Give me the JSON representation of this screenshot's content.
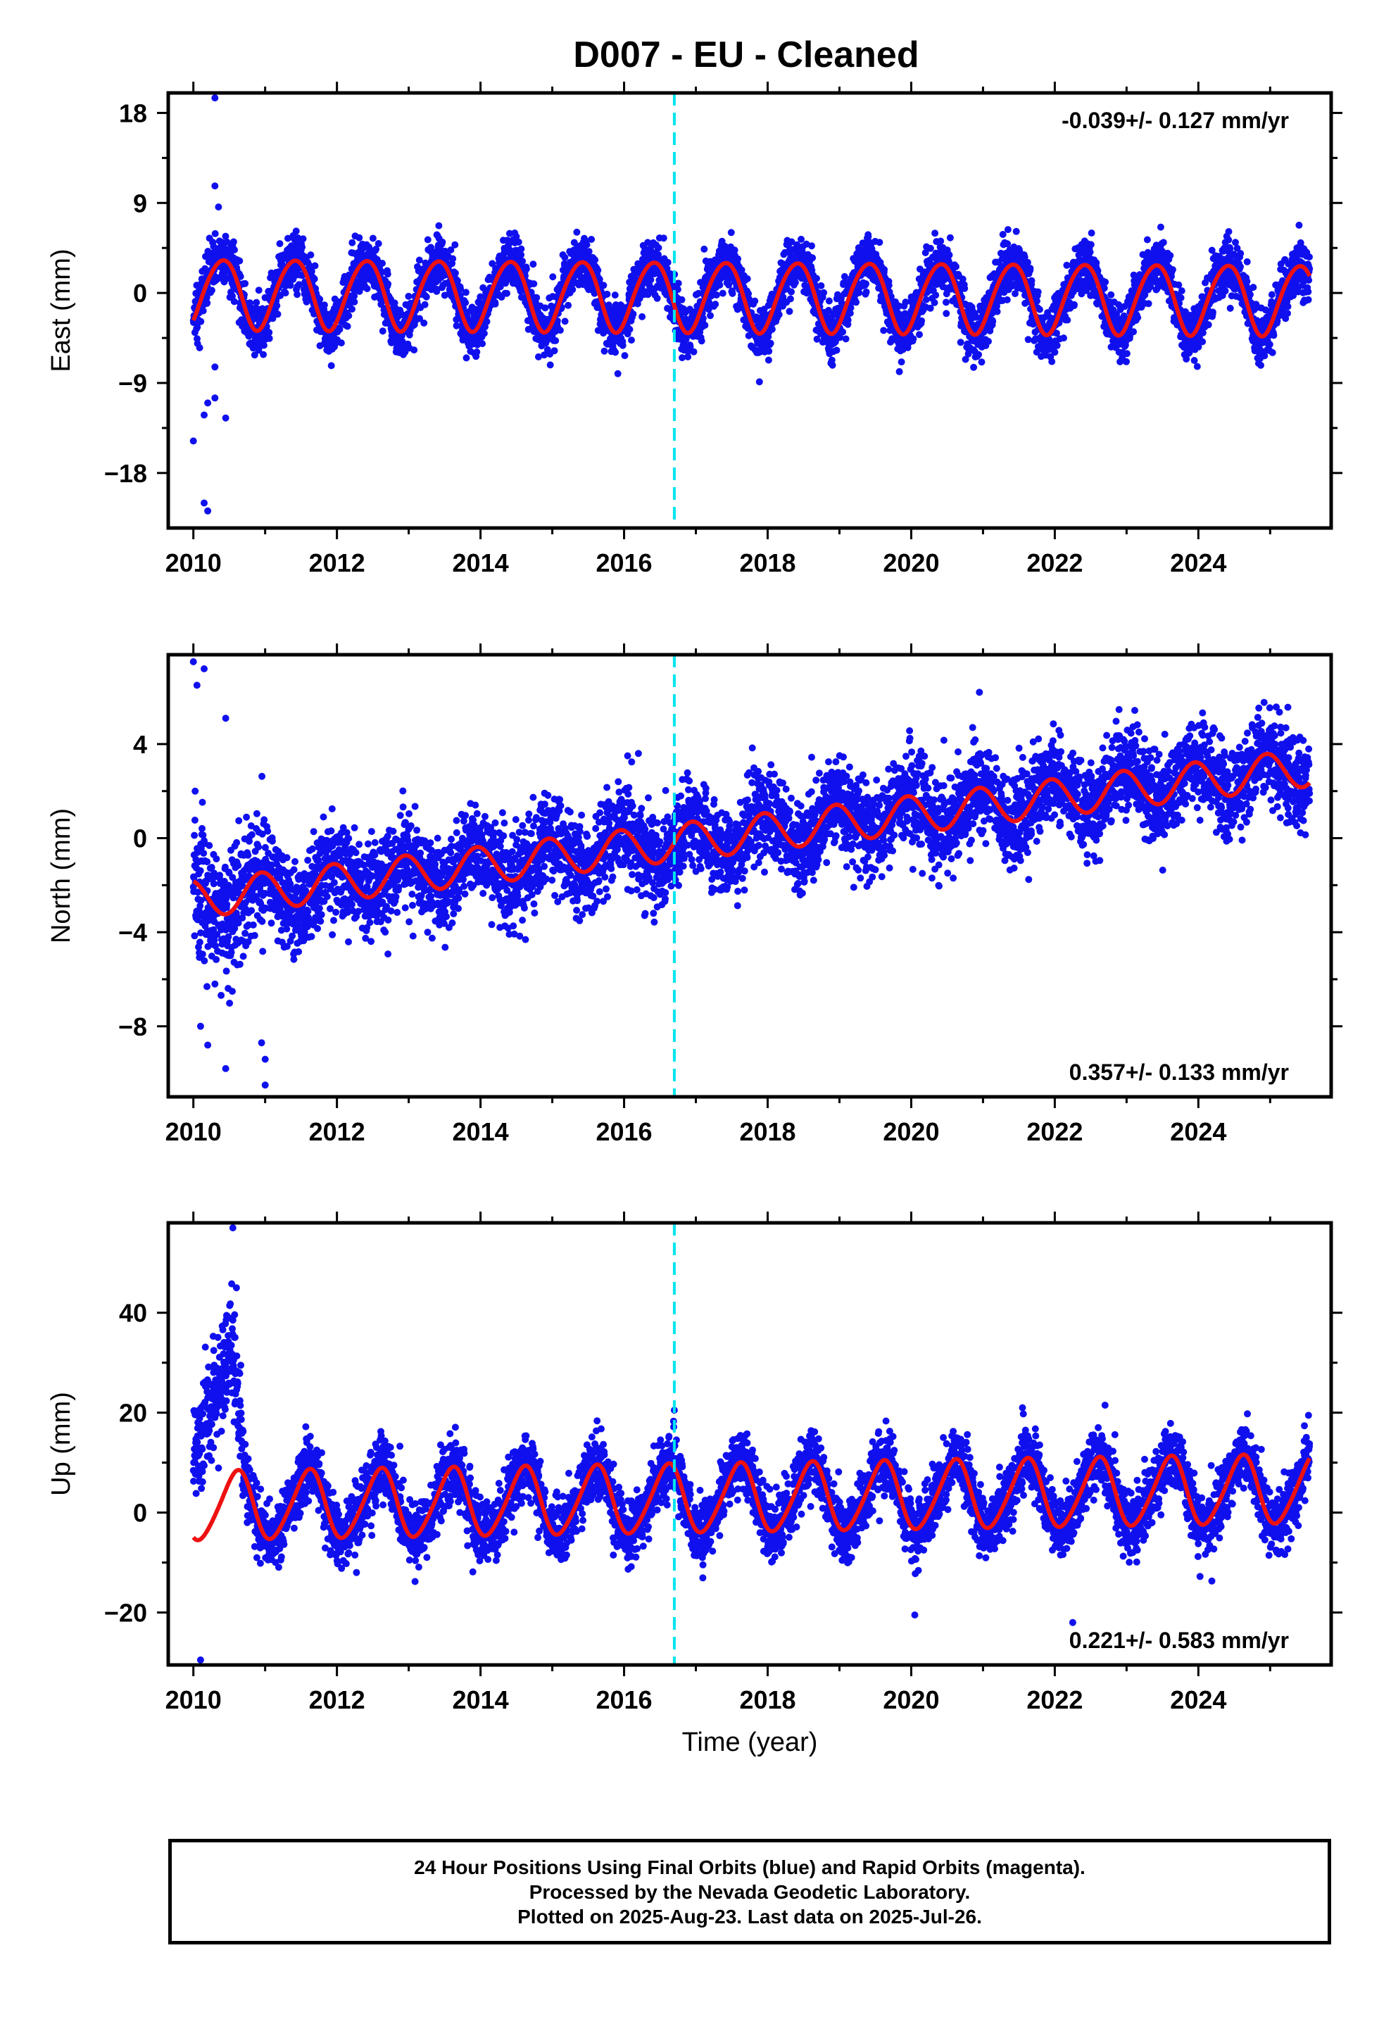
{
  "title": "D007  - EU - Cleaned",
  "x_axis_label": "Time (year)",
  "footer": {
    "line1": "24 Hour Positions Using Final Orbits (blue) and Rapid Orbits (magenta).",
    "line2": "Processed by the Nevada Geodetic Laboratory.",
    "line3": "Plotted on 2025-Aug-23. Last data on 2025-Jul-26."
  },
  "colors": {
    "final_orbits_points": "#1010ee",
    "model_fit": "#ee1111",
    "equipment_change_line": "#00e5ee",
    "frame": "#000000"
  },
  "chart_data": [
    {
      "type": "scatter",
      "component": "East",
      "ylabel": "East (mm)",
      "xlim": [
        2009.65,
        2025.85
      ],
      "ylim": [
        -23.5,
        20
      ],
      "x_ticks": [
        2010,
        2012,
        2014,
        2016,
        2018,
        2020,
        2022,
        2024
      ],
      "y_ticks": [
        18,
        9,
        0,
        -9,
        -18
      ],
      "y_tick_labels": [
        "18",
        "9",
        "0",
        "−9",
        "−18"
      ],
      "rate_label": "-0.039+/- 0.127 mm/yr",
      "rate_label_position": "top-right",
      "trend_intercept": 0.0,
      "rate_mm_per_yr": -0.039,
      "seasonal": {
        "annual_amplitude": 3.5,
        "annual_peak_year_fraction": 0.4,
        "semiannual_amplitude": 0.3,
        "semiannual_phase_fraction": 0.1
      },
      "scatter_std": 1.35,
      "series_x_range": [
        2010.0,
        2025.55
      ],
      "equipment_change_x": 2016.7,
      "outliers": [
        [
          2010.3,
          19.5
        ],
        [
          2010.0,
          -14.8
        ],
        [
          2010.15,
          -12.2
        ],
        [
          2010.2,
          -11.0
        ],
        [
          2010.3,
          -10.5
        ],
        [
          2010.45,
          -12.5
        ],
        [
          2010.3,
          -7.4
        ],
        [
          2010.15,
          -21.0
        ],
        [
          2010.2,
          -21.8
        ],
        [
          2010.3,
          10.7
        ],
        [
          2010.35,
          8.6
        ]
      ]
    },
    {
      "type": "scatter",
      "component": "North",
      "ylabel": "North (mm)",
      "xlim": [
        2009.65,
        2025.85
      ],
      "ylim": [
        -11,
        7.8
      ],
      "x_ticks": [
        2010,
        2012,
        2014,
        2016,
        2018,
        2020,
        2022,
        2024
      ],
      "y_ticks": [
        4,
        0,
        -4,
        -8
      ],
      "y_tick_labels": [
        "4",
        "0",
        "−4",
        "−8"
      ],
      "rate_label": "0.357+/- 0.133 mm/yr",
      "rate_label_position": "bottom-right",
      "trend_intercept": -2.6,
      "rate_mm_per_yr": 0.357,
      "seasonal": {
        "annual_amplitude": 0.8,
        "annual_peak_year_fraction": 0.95,
        "semiannual_amplitude": 0.15,
        "semiannual_phase_fraction": 0.3
      },
      "scatter_std": 0.95,
      "series_x_range": [
        2010.0,
        2025.55
      ],
      "equipment_change_x": 2016.7,
      "outliers": [
        [
          2010.0,
          7.5
        ],
        [
          2010.15,
          7.2
        ],
        [
          2010.05,
          6.5
        ],
        [
          2010.1,
          -8.0
        ],
        [
          2010.2,
          -8.8
        ],
        [
          2010.3,
          -6.2
        ],
        [
          2010.45,
          -9.8
        ],
        [
          2010.45,
          5.1
        ],
        [
          2010.95,
          -8.7
        ],
        [
          2011.0,
          -9.4
        ],
        [
          2011.0,
          -10.5
        ],
        [
          2020.95,
          6.2
        ],
        [
          2016.05,
          3.5
        ],
        [
          2016.2,
          3.6
        ]
      ]
    },
    {
      "type": "scatter",
      "component": "Up",
      "ylabel": "Up (mm)",
      "xlim": [
        2009.65,
        2025.85
      ],
      "ylim": [
        -30.5,
        58
      ],
      "x_ticks": [
        2010,
        2012,
        2014,
        2016,
        2018,
        2020,
        2022,
        2024
      ],
      "y_ticks": [
        40,
        20,
        0,
        -20
      ],
      "y_tick_labels": [
        "40",
        "20",
        "0",
        "−20"
      ],
      "rate_label": "0.221+/- 0.583 mm/yr",
      "rate_label_position": "bottom-right",
      "trend_intercept": 1.2,
      "rate_mm_per_yr": 0.221,
      "seasonal": {
        "annual_amplitude": 6.8,
        "annual_peak_year_fraction": 0.6,
        "semiannual_amplitude": 0.8,
        "semiannual_phase_fraction": 0.2
      },
      "scatter_std": 3.2,
      "series_x_range": [
        2010.0,
        2025.55
      ],
      "equipment_change_x": 2016.7,
      "early_transient": {
        "x_start": 2010.0,
        "x_end": 2010.7,
        "peak_x": 2010.55,
        "peak_value": 33.0,
        "base_value": 12.0
      },
      "outliers": [
        [
          2010.55,
          57.0
        ],
        [
          2010.1,
          -29.5
        ],
        [
          2010.6,
          45.0
        ],
        [
          2016.7,
          20.5
        ],
        [
          2022.25,
          -22.0
        ],
        [
          2022.7,
          21.5
        ],
        [
          2021.55,
          21.0
        ],
        [
          2020.05,
          -20.5
        ]
      ]
    }
  ]
}
